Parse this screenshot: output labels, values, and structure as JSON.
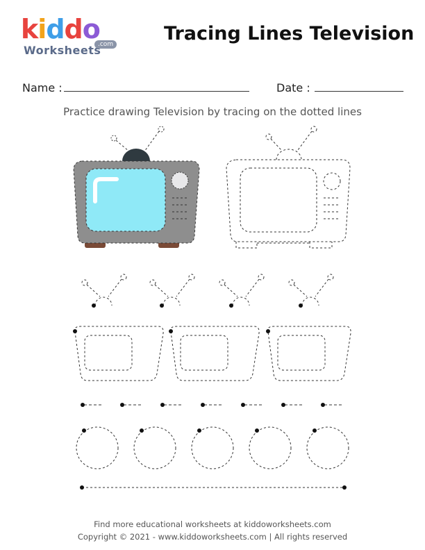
{
  "logo": {
    "letters": [
      "k",
      "i",
      "d",
      "d",
      "o"
    ],
    "colors": [
      "#e8433e",
      "#f2a31b",
      "#3f9ee8",
      "#e8433e",
      "#8c5bd6"
    ],
    "sub": "Worksheets",
    "com": ".com"
  },
  "title": "Tracing Lines Television",
  "name_label": "Name :",
  "date_label": "Date :",
  "instruction": "Practice drawing Television by tracing on the dotted lines",
  "footer": {
    "line1": "Find more educational worksheets at kiddoworksheets.com",
    "line2": "Copyright © 2021 - www.kiddoworksheets.com  |  All rights reserved"
  },
  "colors": {
    "tv_body": "#8e8e8e",
    "tv_screen": "#8fe9f7",
    "tv_feet": "#7a4a36",
    "tv_knob": "#2f3a40"
  }
}
